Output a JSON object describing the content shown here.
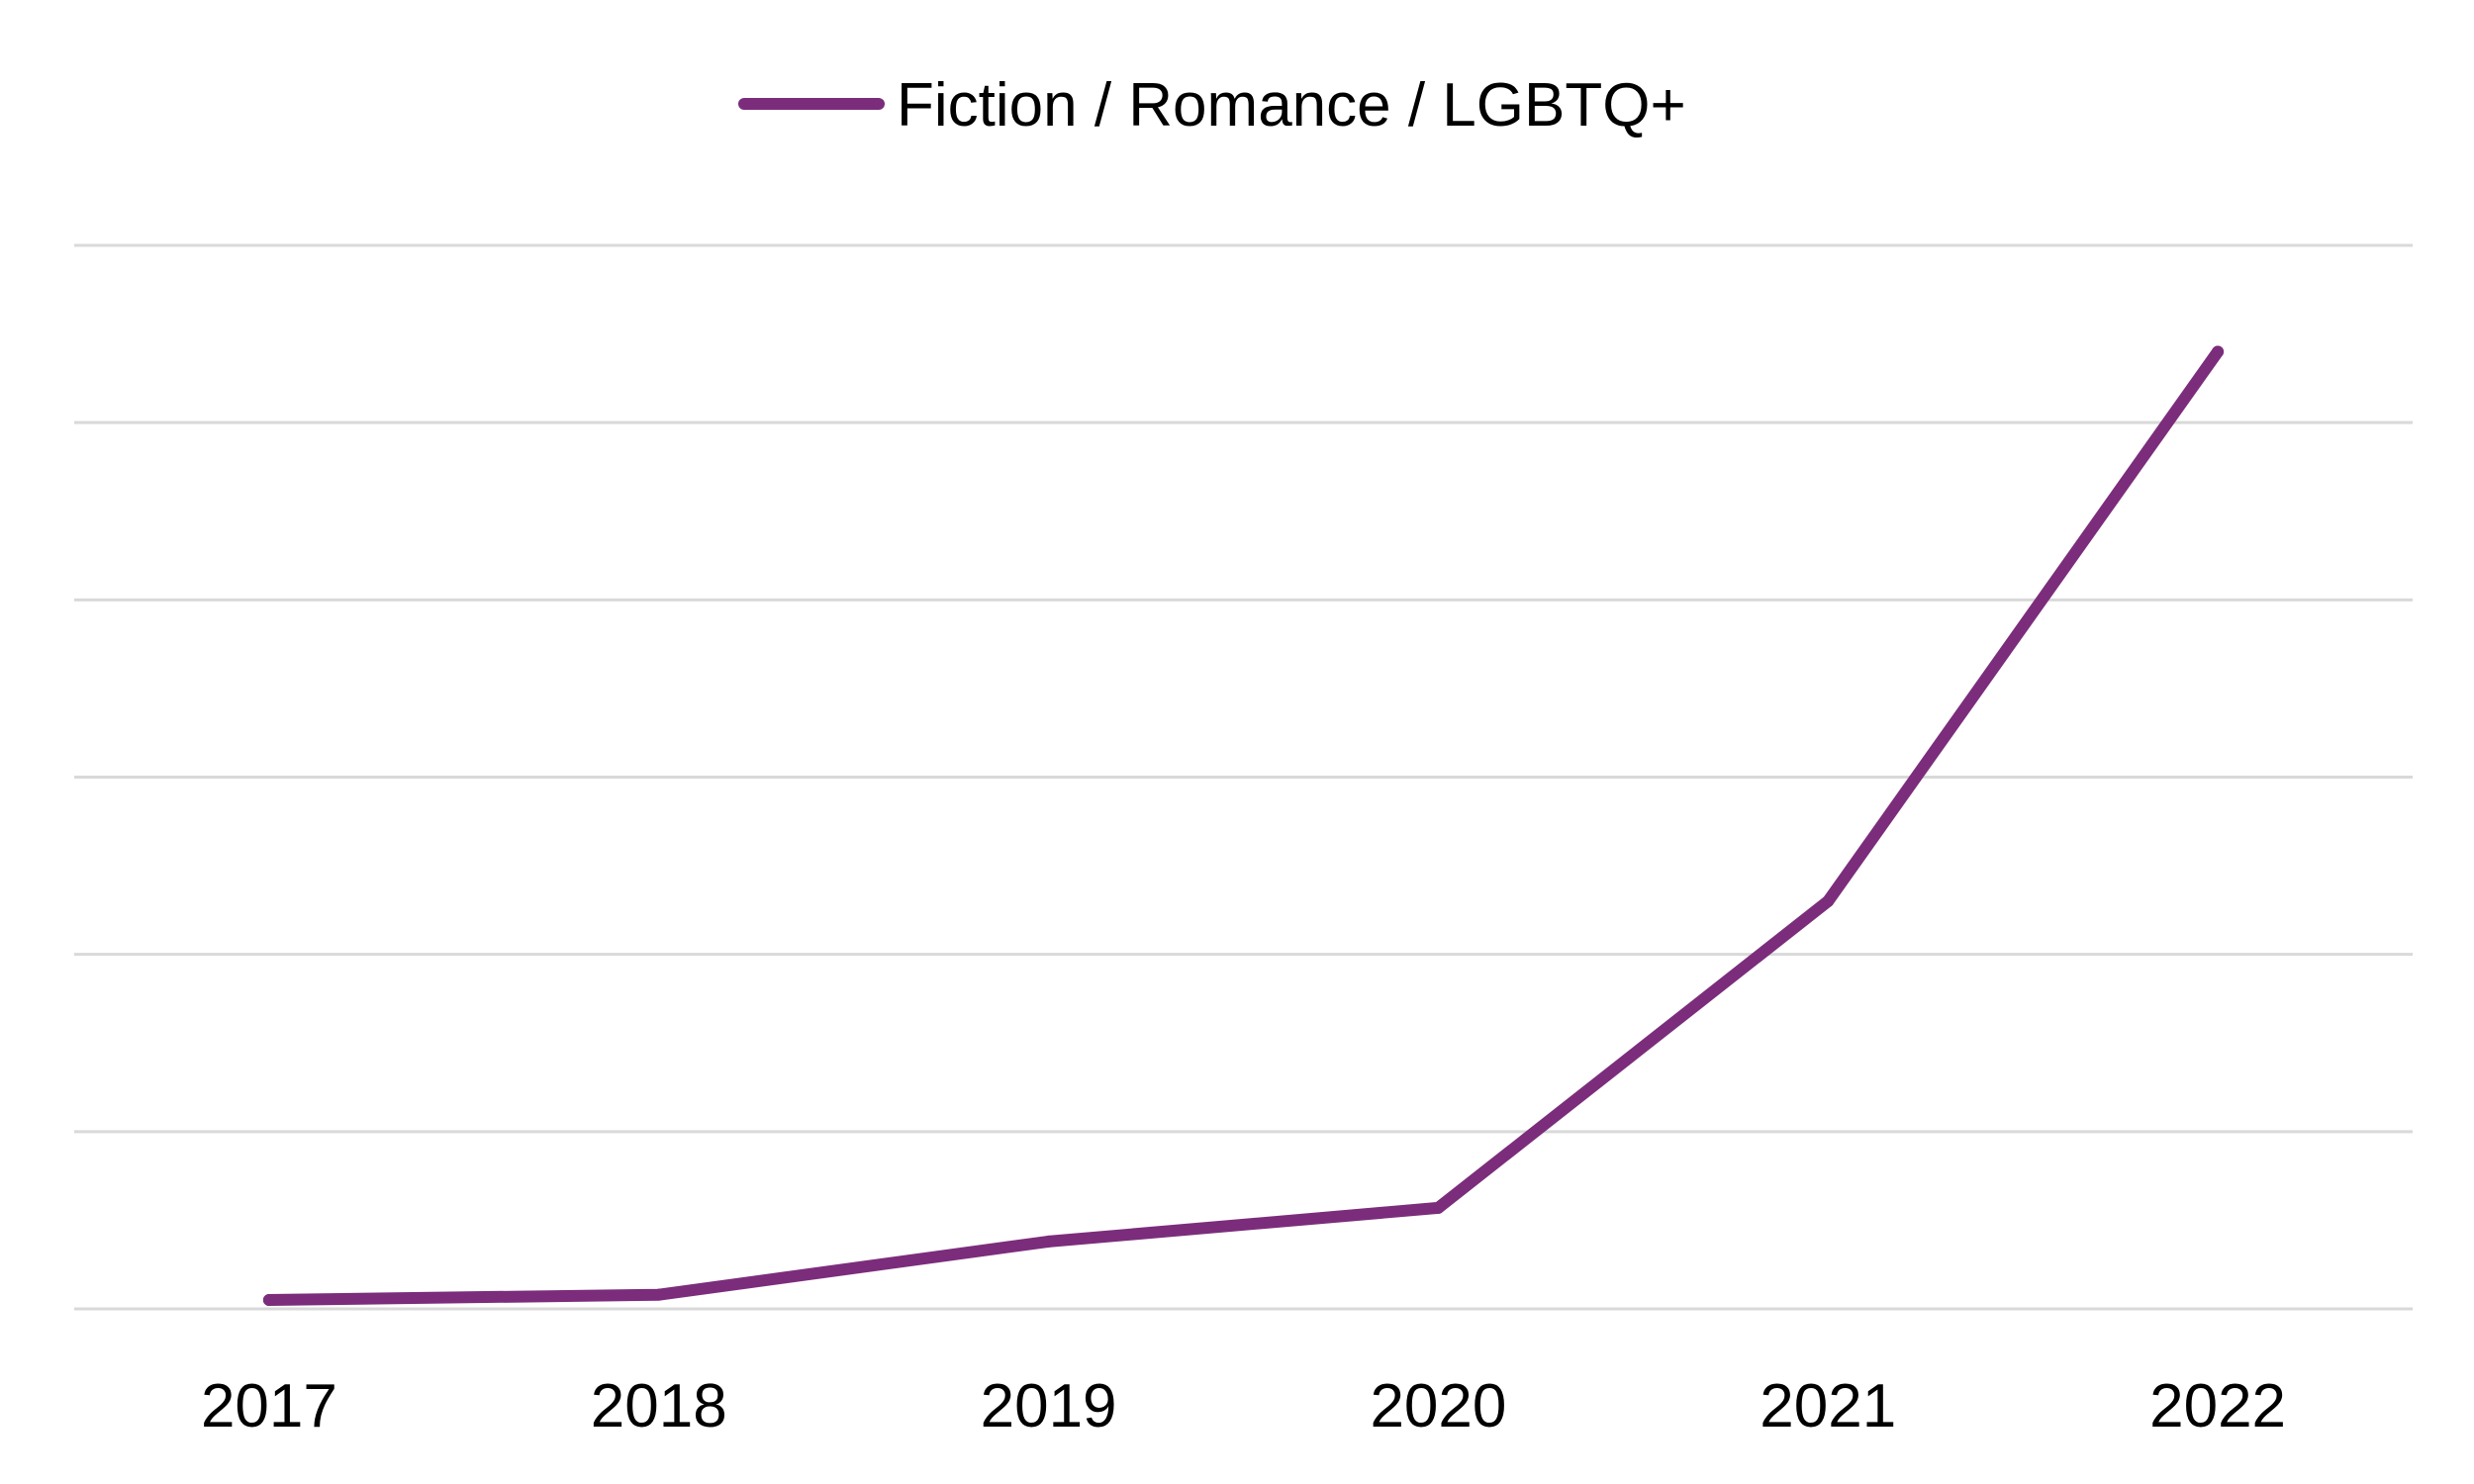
{
  "chart_data": {
    "type": "line",
    "categories": [
      "2017",
      "2018",
      "2019",
      "2020",
      "2021",
      "2022"
    ],
    "series": [
      {
        "name": "Fiction / Romance / LGBTQ+",
        "color": "#7B2D7B",
        "values": [
          0.5,
          0.8,
          3.8,
          5.7,
          23.0,
          54.0
        ]
      }
    ],
    "ylim": [
      0,
      60
    ],
    "y_gridlines": [
      0,
      10,
      20,
      30,
      40,
      50,
      60
    ],
    "ytick_labels_shown": false,
    "grid": true,
    "grid_color": "#d9d9d9",
    "legend": {
      "position": "top-center"
    }
  }
}
